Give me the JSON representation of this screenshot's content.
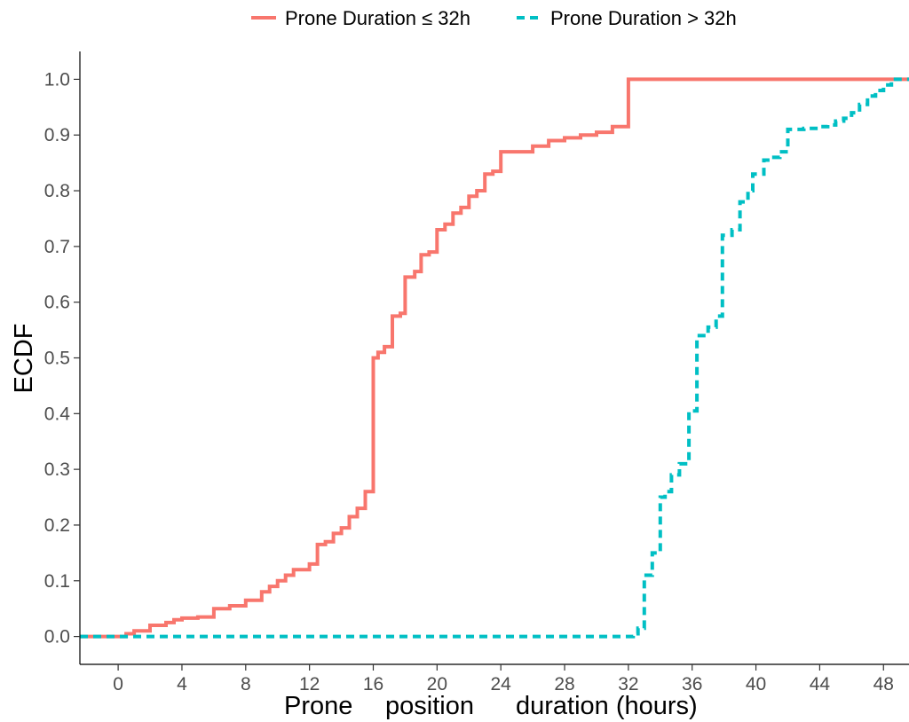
{
  "chart_data": {
    "type": "line",
    "step": true,
    "title": "",
    "xlabel_parts": [
      "Prone",
      "position",
      "duration (hours)"
    ],
    "ylabel": "ECDF",
    "xlim": [
      -2.4,
      49.6
    ],
    "ylim": [
      -0.05,
      1.05
    ],
    "x_ticks": [
      "0",
      "4",
      "8",
      "12",
      "16",
      "20",
      "24",
      "28",
      "32",
      "36",
      "40",
      "44",
      "48"
    ],
    "y_ticks": [
      "0.0",
      "0.1",
      "0.2",
      "0.3",
      "0.4",
      "0.5",
      "0.6",
      "0.7",
      "0.8",
      "0.9",
      "1.0"
    ],
    "grid": false,
    "legend_position": "top",
    "series": [
      {
        "name": "Prone Duration ≤ 32h",
        "color": "#F8766D",
        "dash": "solid",
        "x": [
          -2.4,
          0.5,
          1.0,
          2.0,
          3.0,
          3.5,
          4.0,
          5.0,
          6.0,
          7.0,
          8.0,
          9.0,
          9.5,
          10.0,
          10.5,
          11.0,
          12.0,
          12.5,
          13.0,
          13.5,
          14.0,
          14.5,
          15.0,
          15.5,
          16.0,
          16.3,
          16.7,
          17.2,
          17.7,
          18.0,
          18.6,
          19.0,
          19.5,
          20.0,
          20.5,
          21.0,
          21.5,
          22.0,
          22.5,
          23.0,
          23.5,
          24.0,
          26.0,
          27.0,
          28.0,
          29.0,
          30.0,
          31.0,
          32.0,
          49.6
        ],
        "y": [
          0.0,
          0.005,
          0.01,
          0.02,
          0.025,
          0.03,
          0.033,
          0.035,
          0.05,
          0.055,
          0.065,
          0.08,
          0.09,
          0.1,
          0.11,
          0.12,
          0.13,
          0.165,
          0.17,
          0.185,
          0.195,
          0.215,
          0.23,
          0.26,
          0.5,
          0.51,
          0.52,
          0.575,
          0.58,
          0.645,
          0.655,
          0.685,
          0.69,
          0.73,
          0.74,
          0.76,
          0.77,
          0.79,
          0.8,
          0.83,
          0.835,
          0.87,
          0.88,
          0.89,
          0.895,
          0.9,
          0.905,
          0.915,
          1.0,
          1.0
        ]
      },
      {
        "name": "Prone Duration > 32h",
        "color": "#00BFC4",
        "dash": "dashed",
        "x": [
          -2.4,
          32.3,
          32.6,
          33.0,
          33.5,
          34.0,
          34.3,
          34.7,
          35.2,
          35.8,
          36.3,
          37.0,
          37.5,
          37.9,
          38.5,
          39.0,
          39.5,
          39.8,
          40.5,
          41.0,
          41.5,
          42.0,
          43.0,
          44.0,
          44.5,
          45.0,
          45.5,
          46.0,
          46.5,
          47.0,
          47.5,
          48.0,
          48.5,
          49.6
        ],
        "y": [
          0.0,
          0.005,
          0.015,
          0.11,
          0.15,
          0.25,
          0.26,
          0.29,
          0.31,
          0.405,
          0.54,
          0.555,
          0.575,
          0.72,
          0.73,
          0.78,
          0.8,
          0.83,
          0.855,
          0.86,
          0.87,
          0.91,
          0.912,
          0.915,
          0.918,
          0.925,
          0.93,
          0.94,
          0.955,
          0.97,
          0.98,
          0.99,
          1.0,
          1.0
        ]
      }
    ]
  }
}
